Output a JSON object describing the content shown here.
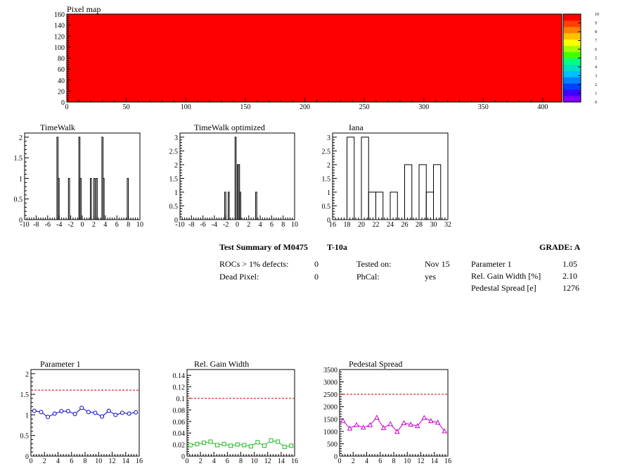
{
  "pixel_map": {
    "title": "Pixel map",
    "fill_color": "#ff0000",
    "palette_ticks": [
      "0",
      "1",
      "2",
      "3",
      "4",
      "5",
      "6",
      "7",
      "8",
      "9",
      "10"
    ],
    "palette_colors": [
      "#8000ff",
      "#4000ff",
      "#0040ff",
      "#0080ff",
      "#00c0ff",
      "#00e0c0",
      "#00ff80",
      "#40ff00",
      "#a0ff00",
      "#ffff00",
      "#ffc000",
      "#ff8000",
      "#ff4000",
      "#ff0000"
    ]
  },
  "summary": {
    "title": "Test Summary of M0475",
    "test_name": "T-10a",
    "grade": "GRADE:  A",
    "rows_left": [
      {
        "label": "ROCs > 1% defects:",
        "value": "0"
      },
      {
        "label": "Dead Pixel:",
        "value": "0"
      }
    ],
    "rows_mid": [
      {
        "label": "Tested on:",
        "value": "Nov 15"
      },
      {
        "label": "PhCal:",
        "value": "yes"
      }
    ],
    "rows_right": [
      {
        "label": "Parameter 1",
        "value": "1.05"
      },
      {
        "label": "Rel. Gain Width [%]",
        "value": "2.10"
      },
      {
        "label": "Pedestal Spread [e]",
        "value": "1276"
      }
    ]
  },
  "chart_data": [
    {
      "id": "pixelmap",
      "type": "heatmap",
      "title": "Pixel map",
      "xlim": [
        0,
        416
      ],
      "ylim": [
        0,
        160
      ],
      "xticks": [
        0,
        50,
        100,
        150,
        200,
        250,
        300,
        350,
        400
      ],
      "yticks": [
        0,
        20,
        40,
        60,
        80,
        100,
        120,
        140,
        160
      ],
      "zlim": [
        0,
        10
      ],
      "value": 10
    },
    {
      "id": "timewalk",
      "type": "bar",
      "title": "TimeWalk",
      "xlim": [
        -10,
        10
      ],
      "ylim": [
        0,
        2.1
      ],
      "xticks": [
        -10,
        -8,
        -6,
        -4,
        -2,
        0,
        2,
        4,
        6,
        8,
        10
      ],
      "yticks": [
        0,
        0.5,
        1,
        1.5,
        2
      ],
      "ytick_labels": [
        "0",
        "0.5",
        "1",
        "1.5",
        "2"
      ],
      "bin_width": 0.2,
      "bins": [
        [
          -4.4,
          2
        ],
        [
          -4.2,
          1
        ],
        [
          -2.4,
          1
        ],
        [
          -0.6,
          2
        ],
        [
          -0.4,
          1
        ],
        [
          1.4,
          1
        ],
        [
          2.0,
          1
        ],
        [
          2.4,
          1
        ],
        [
          3.4,
          2
        ],
        [
          3.6,
          1
        ],
        [
          7.8,
          1
        ]
      ]
    },
    {
      "id": "timewalk_opt",
      "type": "bar",
      "title": "TimeWalk optimized",
      "xlim": [
        -10,
        10
      ],
      "ylim": [
        0,
        3.15
      ],
      "xticks": [
        -10,
        -8,
        -6,
        -4,
        -2,
        0,
        2,
        4,
        6,
        8,
        10
      ],
      "yticks": [
        0,
        0.5,
        1,
        1.5,
        2,
        2.5,
        3
      ],
      "ytick_labels": [
        "0",
        "0.5",
        "1",
        "1.5",
        "2",
        "2.5",
        "3"
      ],
      "bin_width": 0.2,
      "bins": [
        [
          -2.2,
          1
        ],
        [
          -1.6,
          1
        ],
        [
          -0.4,
          3
        ],
        [
          0,
          2
        ],
        [
          0.2,
          2
        ],
        [
          0.4,
          1
        ],
        [
          3.2,
          1
        ]
      ]
    },
    {
      "id": "iana",
      "type": "bar",
      "title": "Iana",
      "xlim": [
        16,
        32
      ],
      "ylim": [
        0,
        3.15
      ],
      "xticks": [
        16,
        18,
        20,
        22,
        24,
        26,
        28,
        30,
        32
      ],
      "yticks": [
        0,
        0.5,
        1,
        1.5,
        2,
        2.5,
        3
      ],
      "ytick_labels": [
        "0",
        "0.5",
        "1",
        "1.5",
        "2",
        "2.5",
        "3"
      ],
      "bin_width": 1,
      "bins": [
        [
          18,
          3
        ],
        [
          20,
          3
        ],
        [
          21,
          1
        ],
        [
          22,
          1
        ],
        [
          24,
          1
        ],
        [
          26,
          2
        ],
        [
          28,
          2
        ],
        [
          29,
          1
        ],
        [
          30,
          2
        ]
      ]
    },
    {
      "id": "param1",
      "type": "line",
      "title": "Parameter 1",
      "xlim": [
        0,
        16
      ],
      "ylim": [
        0,
        2.1
      ],
      "xticks": [
        0,
        2,
        4,
        6,
        8,
        10,
        12,
        14,
        16
      ],
      "yticks": [
        0,
        0.5,
        1,
        1.5,
        2
      ],
      "ytick_labels": [
        "0",
        "0.5",
        "1",
        "1.5",
        "2"
      ],
      "x": [
        0.5,
        1.5,
        2.5,
        3.5,
        4.5,
        5.5,
        6.5,
        7.5,
        8.5,
        9.5,
        10.5,
        11.5,
        12.5,
        13.5,
        14.5,
        15.5
      ],
      "y": [
        1.1,
        1.07,
        0.95,
        1.03,
        1.09,
        1.09,
        1.02,
        1.17,
        1.07,
        1.05,
        0.96,
        1.1,
        1.0,
        1.05,
        1.03,
        1.06
      ],
      "color": "#0000cc",
      "marker": "circle",
      "reference": 1.6
    },
    {
      "id": "relgain",
      "type": "line",
      "title": "Rel. Gain Width",
      "xlim": [
        0,
        16
      ],
      "ylim": [
        0,
        0.15
      ],
      "xticks": [
        0,
        2,
        4,
        6,
        8,
        10,
        12,
        14,
        16
      ],
      "yticks": [
        0,
        0.02,
        0.04,
        0.06,
        0.08,
        0.1,
        0.12,
        0.14
      ],
      "ytick_labels": [
        "0",
        "0.02",
        "0.04",
        "0.06",
        "0.08",
        "0.1",
        "0.12",
        "0.14"
      ],
      "x": [
        0.5,
        1.5,
        2.5,
        3.5,
        4.5,
        5.5,
        6.5,
        7.5,
        8.5,
        9.5,
        10.5,
        11.5,
        12.5,
        13.5,
        14.5,
        15.5
      ],
      "y": [
        0.019,
        0.021,
        0.023,
        0.025,
        0.019,
        0.021,
        0.018,
        0.02,
        0.019,
        0.017,
        0.024,
        0.018,
        0.027,
        0.025,
        0.016,
        0.018
      ],
      "color": "#22bb22",
      "marker": "square",
      "reference": 0.1
    },
    {
      "id": "pedestal",
      "type": "line",
      "title": "Pedestal Spread",
      "xlim": [
        0,
        16
      ],
      "ylim": [
        0,
        3500
      ],
      "xticks": [
        0,
        2,
        4,
        6,
        8,
        10,
        12,
        14,
        16
      ],
      "yticks": [
        0,
        500,
        1000,
        1500,
        2000,
        2500,
        3000,
        3500
      ],
      "ytick_labels": [
        "0",
        "500",
        "1000",
        "1500",
        "2000",
        "2500",
        "3000",
        "3500"
      ],
      "x": [
        0.5,
        1.5,
        2.5,
        3.5,
        4.5,
        5.5,
        6.5,
        7.5,
        8.5,
        9.5,
        10.5,
        11.5,
        12.5,
        13.5,
        14.5,
        15.5
      ],
      "y": [
        1430,
        1120,
        1260,
        1160,
        1260,
        1560,
        1140,
        1300,
        990,
        1340,
        1280,
        1220,
        1550,
        1420,
        1360,
        1010
      ],
      "color": "#cc00cc",
      "marker": "triangle",
      "reference": 2500
    }
  ]
}
